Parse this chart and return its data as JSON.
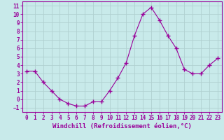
{
  "x": [
    0,
    1,
    2,
    3,
    4,
    5,
    6,
    7,
    8,
    9,
    10,
    11,
    12,
    13,
    14,
    15,
    16,
    17,
    18,
    19,
    20,
    21,
    22,
    23
  ],
  "y": [
    3.3,
    3.3,
    2.0,
    1.0,
    0.0,
    -0.5,
    -0.8,
    -0.8,
    -0.3,
    -0.3,
    1.0,
    2.5,
    4.3,
    7.5,
    10.0,
    10.8,
    9.3,
    7.5,
    6.0,
    3.5,
    3.0,
    3.0,
    4.0,
    4.8
  ],
  "line_color": "#990099",
  "marker": "+",
  "marker_size": 4,
  "bg_color": "#c8eaea",
  "grid_color": "#b0d0d0",
  "xlabel": "Windchill (Refroidissement éolien,°C)",
  "xlim": [
    -0.5,
    23.5
  ],
  "ylim": [
    -1.5,
    11.5
  ],
  "yticks": [
    -1,
    0,
    1,
    2,
    3,
    4,
    5,
    6,
    7,
    8,
    9,
    10,
    11
  ],
  "xticks": [
    0,
    1,
    2,
    3,
    4,
    5,
    6,
    7,
    8,
    9,
    10,
    11,
    12,
    13,
    14,
    15,
    16,
    17,
    18,
    19,
    20,
    21,
    22,
    23
  ],
  "tick_fontsize": 5.5,
  "xlabel_fontsize": 6.5
}
